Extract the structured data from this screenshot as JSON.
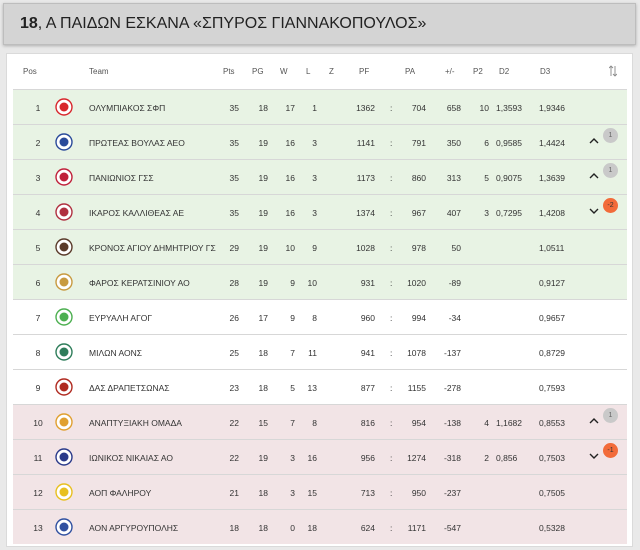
{
  "title": {
    "bold": "18",
    "rest": ", Α ΠΑΙΔΩΝ ΕΣΚΑΝΑ «ΣΠΥΡΟΣ ΓΙΑΝΝΑΚΟΠΟΥΛΟΣ»"
  },
  "columns": {
    "pos": "Pos",
    "team": "Team",
    "pts": "Pts",
    "pg": "PG",
    "w": "W",
    "l": "L",
    "z": "Z",
    "pf": "PF",
    "pa": "PA",
    "diff": "+/-",
    "p2": "P2",
    "d2": "D2",
    "d3": "D3",
    "sort_icon": "sort-arrows-icon"
  },
  "separator": ":",
  "rows": [
    {
      "pos": "1",
      "team": "ΟΛΥΜΠΙΑΚΟΣ ΣΦΠ",
      "pts": "35",
      "pg": "18",
      "w": "17",
      "l": "1",
      "pf": "1362",
      "pa": "704",
      "diff": "658",
      "p2": "10",
      "d2": "1,3593",
      "d3": "1,9346",
      "zone": "green",
      "logo_color": "#d8262c",
      "move": "",
      "badge": ""
    },
    {
      "pos": "2",
      "team": "ΠΡΩΤΕΑΣ ΒΟΥΛΑΣ ΑΕΟ",
      "pts": "35",
      "pg": "19",
      "w": "16",
      "l": "3",
      "pf": "1141",
      "pa": "791",
      "diff": "350",
      "p2": "6",
      "d2": "0,9585",
      "d3": "1,4424",
      "zone": "green",
      "logo_color": "#2a4a9a",
      "move": "up",
      "badge": "1"
    },
    {
      "pos": "3",
      "team": "ΠΑΝΙΩΝΙΟΣ ΓΣΣ",
      "pts": "35",
      "pg": "19",
      "w": "16",
      "l": "3",
      "pf": "1173",
      "pa": "860",
      "diff": "313",
      "p2": "5",
      "d2": "0,9075",
      "d3": "1,3639",
      "zone": "green",
      "logo_color": "#c0203a",
      "move": "up",
      "badge": "1"
    },
    {
      "pos": "4",
      "team": "ΙΚΑΡΟΣ ΚΑΛΛΙΘΕΑΣ ΑΕ",
      "pts": "35",
      "pg": "19",
      "w": "16",
      "l": "3",
      "pf": "1374",
      "pa": "967",
      "diff": "407",
      "p2": "3",
      "d2": "0,7295",
      "d3": "1,4208",
      "zone": "green",
      "logo_color": "#b03040",
      "move": "down",
      "badge": "-2"
    },
    {
      "pos": "5",
      "team": "ΚΡΟΝΟΣ ΑΓΙΟΥ ΔΗΜΗΤΡΙΟΥ ΓΣ",
      "pts": "29",
      "pg": "19",
      "w": "10",
      "l": "9",
      "pf": "1028",
      "pa": "978",
      "diff": "50",
      "p2": "",
      "d2": "",
      "d3": "1,0511",
      "zone": "green",
      "logo_color": "#5a3a2a",
      "move": "",
      "badge": ""
    },
    {
      "pos": "6",
      "team": "ΦΑΡΟΣ ΚΕΡΑΤΣΙΝΙΟΥ ΑΟ",
      "pts": "28",
      "pg": "19",
      "w": "9",
      "l": "10",
      "pf": "931",
      "pa": "1020",
      "diff": "-89",
      "p2": "",
      "d2": "",
      "d3": "0,9127",
      "zone": "green",
      "logo_color": "#c89a40",
      "move": "",
      "badge": ""
    },
    {
      "pos": "7",
      "team": "ΕΥΡΥΑΛΗ ΑΓΟΓ",
      "pts": "26",
      "pg": "17",
      "w": "9",
      "l": "8",
      "pf": "960",
      "pa": "994",
      "diff": "-34",
      "p2": "",
      "d2": "",
      "d3": "0,9657",
      "zone": "white",
      "logo_color": "#4caf50",
      "move": "",
      "badge": ""
    },
    {
      "pos": "8",
      "team": "ΜΙΛΩΝ ΑΟΝΣ",
      "pts": "25",
      "pg": "18",
      "w": "7",
      "l": "11",
      "pf": "941",
      "pa": "1078",
      "diff": "-137",
      "p2": "",
      "d2": "",
      "d3": "0,8729",
      "zone": "white",
      "logo_color": "#2e7d5a",
      "move": "",
      "badge": ""
    },
    {
      "pos": "9",
      "team": "ΔΑΣ ΔΡΑΠΕΤΣΩΝΑΣ",
      "pts": "23",
      "pg": "18",
      "w": "5",
      "l": "13",
      "pf": "877",
      "pa": "1155",
      "diff": "-278",
      "p2": "",
      "d2": "",
      "d3": "0,7593",
      "zone": "white",
      "logo_color": "#b02a20",
      "move": "",
      "badge": ""
    },
    {
      "pos": "10",
      "team": "ΑΝΑΠΤΥΞΙΑΚΗ ΟΜΑΔΑ",
      "pts": "22",
      "pg": "15",
      "w": "7",
      "l": "8",
      "pf": "816",
      "pa": "954",
      "diff": "-138",
      "p2": "4",
      "d2": "1,1682",
      "d3": "0,8553",
      "zone": "red",
      "logo_color": "#e0a030",
      "move": "up",
      "badge": "1"
    },
    {
      "pos": "11",
      "team": "ΙΩΝΙΚΟΣ ΝΙΚΑΙΑΣ ΑΟ",
      "pts": "22",
      "pg": "19",
      "w": "3",
      "l": "16",
      "pf": "956",
      "pa": "1274",
      "diff": "-318",
      "p2": "2",
      "d2": "0,856",
      "d3": "0,7503",
      "zone": "red",
      "logo_color": "#2a3a8a",
      "move": "down",
      "badge": "-1"
    },
    {
      "pos": "12",
      "team": "ΑΟΠ ΦΑΛΗΡΟΥ",
      "pts": "21",
      "pg": "18",
      "w": "3",
      "l": "15",
      "pf": "713",
      "pa": "950",
      "diff": "-237",
      "p2": "",
      "d2": "",
      "d3": "0,7505",
      "zone": "red",
      "logo_color": "#e8c020",
      "move": "",
      "badge": ""
    },
    {
      "pos": "13",
      "team": "ΑΟΝ ΑΡΓΥΡΟΥΠΟΛΗΣ",
      "pts": "18",
      "pg": "18",
      "w": "0",
      "l": "18",
      "pf": "624",
      "pa": "1171",
      "diff": "-547",
      "p2": "",
      "d2": "",
      "d3": "0,5328",
      "zone": "red",
      "logo_color": "#3050a0",
      "move": "",
      "badge": ""
    }
  ]
}
